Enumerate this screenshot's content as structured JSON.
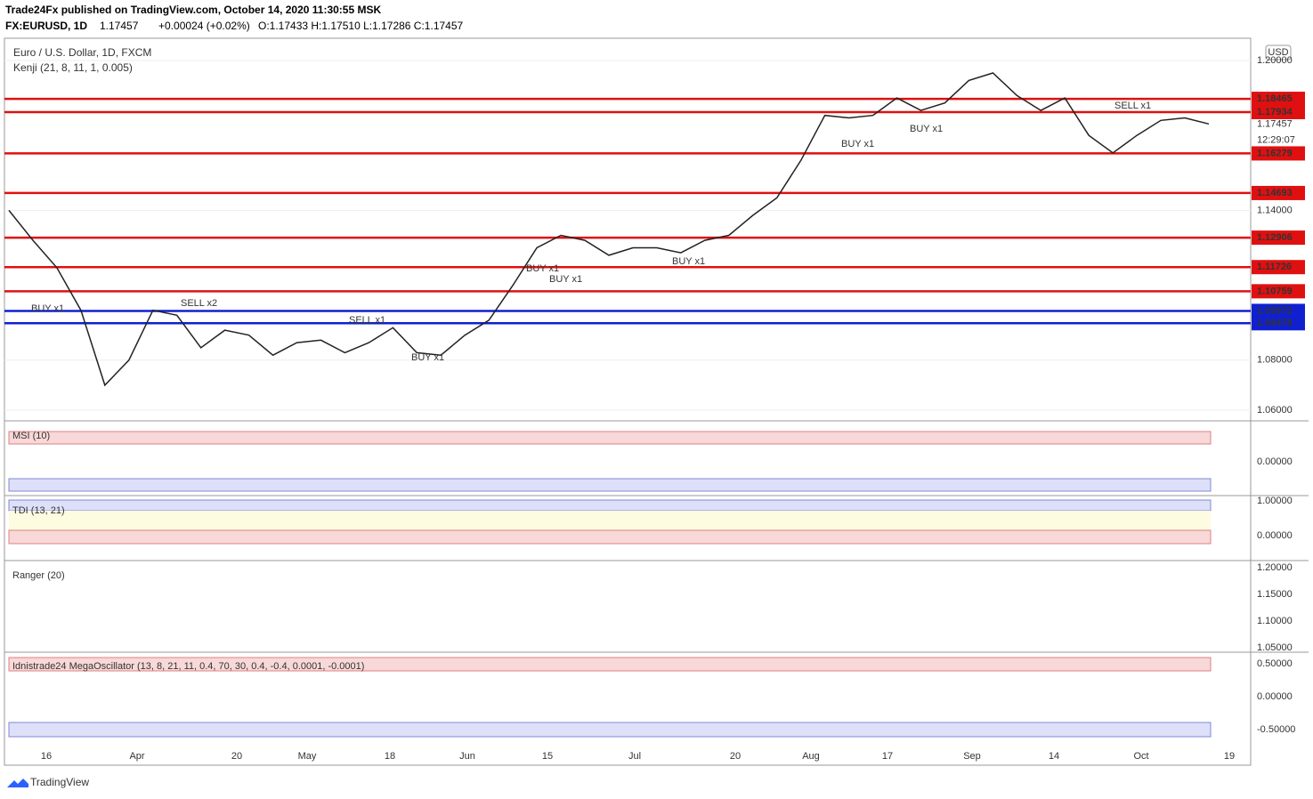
{
  "header": {
    "publisher": "Trade24Fx published on TradingView.com, October 14, 2020 11:30:55 MSK",
    "symbol": "FX:EURUSD, 1D",
    "last": "1.17457",
    "change": "+0.00024 (+0.02%)",
    "ohlc": "O:1.17433 H:1.17510 L:1.17286 C:1.17457"
  },
  "main": {
    "title": "Euro / U.S. Dollar, 1D, FXCM",
    "indicator": "Kenji (21, 8, 11, 1, 0.005)",
    "currency": "USD",
    "ylim": [
      1.0557,
      1.2089
    ],
    "yticks": [
      {
        "value": 1.2,
        "label": "1.20000"
      },
      {
        "value": 1.14,
        "label": "1.14000"
      },
      {
        "value": 1.08,
        "label": "1.08000"
      },
      {
        "value": 1.06,
        "label": "1.06000"
      }
    ],
    "levels": [
      {
        "value": 1.18465,
        "label": "1.18465",
        "color": "#e01010"
      },
      {
        "value": 1.17934,
        "label": "1.17934",
        "color": "#e01010"
      },
      {
        "value": 1.16279,
        "label": "1.16279",
        "color": "#e01010"
      },
      {
        "value": 1.14693,
        "label": "1.14693",
        "color": "#e01010"
      },
      {
        "value": 1.12906,
        "label": "1.12906",
        "color": "#e01010"
      },
      {
        "value": 1.11726,
        "label": "1.11726",
        "color": "#e01010"
      },
      {
        "value": 1.10759,
        "label": "1.10759",
        "color": "#e01010"
      },
      {
        "value": 1.09972,
        "label": "1.09972",
        "color": "#1020d0"
      },
      {
        "value": 1.09478,
        "label": "1.09478",
        "color": "#1020d0"
      }
    ],
    "last_price": {
      "value": 1.17457,
      "label": "1.17457",
      "countdown": "12:29:07"
    },
    "closes": [
      1.14,
      1.128,
      1.117,
      1.1,
      1.07,
      1.08,
      1.1,
      1.098,
      1.085,
      1.092,
      1.09,
      1.082,
      1.087,
      1.088,
      1.083,
      1.087,
      1.093,
      1.083,
      1.082,
      1.09,
      1.096,
      1.11,
      1.125,
      1.13,
      1.128,
      1.122,
      1.125,
      1.125,
      1.123,
      1.128,
      1.13,
      1.138,
      1.145,
      1.16,
      1.178,
      1.177,
      1.178,
      1.185,
      1.18,
      1.183,
      1.192,
      1.195,
      1.186,
      1.18,
      1.185,
      1.17,
      1.163,
      1.17,
      1.176,
      1.177,
      1.1746
    ],
    "signals": [
      "BUY x1",
      "SELL x2",
      "SELL x1",
      "BUY x1",
      "BUY x1",
      "BUY x1",
      "BUY x1",
      "BUY x1",
      "BUY x1",
      "SELL x1"
    ]
  },
  "panels": [
    {
      "title": "MSI (10)",
      "ticks": [
        "0.00000"
      ]
    },
    {
      "title": "TDI (13, 21)",
      "ticks": [
        "1.00000",
        "0.00000"
      ]
    },
    {
      "title": "Ranger (20)",
      "ticks": [
        "1.20000",
        "1.15000",
        "1.10000",
        "1.05000"
      ]
    },
    {
      "title": "Idnistrade24 MegaOscillator (13, 8, 21, 11, 0.4, 70, 30, 0.4, -0.4, 0.0001, -0.0001)",
      "ticks": [
        "0.50000",
        "0.00000",
        "-0.50000"
      ]
    }
  ],
  "x_labels": [
    "16",
    "Apr",
    "20",
    "May",
    "18",
    "Jun",
    "15",
    "Jul",
    "20",
    "Aug",
    "17",
    "Sep",
    "14",
    "Oct",
    "19"
  ],
  "footer": "TradingView"
}
